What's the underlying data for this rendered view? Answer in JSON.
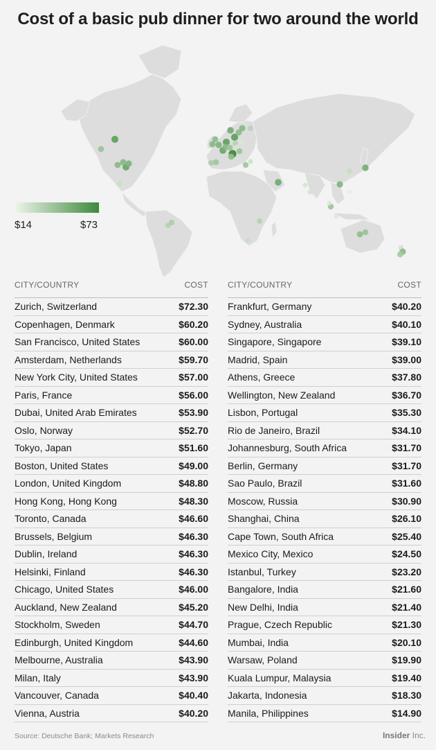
{
  "title": "Cost of a basic pub dinner for two around the world",
  "legend": {
    "min_label": "$14",
    "max_label": "$73",
    "color_low": "#e8f1e4",
    "color_high": "#3c8a3c"
  },
  "table_headers": {
    "city": "CITY/COUNTRY",
    "cost": "COST"
  },
  "left_rows": [
    {
      "city": "Zurich, Switzerland",
      "cost": "$72.30"
    },
    {
      "city": "Copenhagen, Denmark",
      "cost": "$60.20"
    },
    {
      "city": "San Francisco, United States",
      "cost": "$60.00"
    },
    {
      "city": "Amsterdam, Netherlands",
      "cost": "$59.70"
    },
    {
      "city": "New York City, United States",
      "cost": "$57.00"
    },
    {
      "city": "Paris, France",
      "cost": "$56.00"
    },
    {
      "city": "Dubai, United Arab Emirates",
      "cost": "$53.90"
    },
    {
      "city": "Oslo, Norway",
      "cost": "$52.70"
    },
    {
      "city": "Tokyo, Japan",
      "cost": "$51.60"
    },
    {
      "city": "Boston, United States",
      "cost": "$49.00"
    },
    {
      "city": "London, United Kingdom",
      "cost": "$48.80"
    },
    {
      "city": "Hong Kong, Hong Kong",
      "cost": "$48.30"
    },
    {
      "city": "Toronto, Canada",
      "cost": "$46.60"
    },
    {
      "city": "Brussels, Belgium",
      "cost": "$46.30"
    },
    {
      "city": "Dublin, Ireland",
      "cost": "$46.30"
    },
    {
      "city": "Helsinki, Finland",
      "cost": "$46.30"
    },
    {
      "city": "Chicago, United States",
      "cost": "$46.00"
    },
    {
      "city": "Auckland, New Zealand",
      "cost": "$45.20"
    },
    {
      "city": "Stockholm, Sweden",
      "cost": "$44.70"
    },
    {
      "city": "Edinburgh, United Kingdom",
      "cost": "$44.60"
    },
    {
      "city": "Melbourne, Australia",
      "cost": "$43.90"
    },
    {
      "city": "Milan, Italy",
      "cost": "$43.90"
    },
    {
      "city": "Vancouver, Canada",
      "cost": "$40.40"
    },
    {
      "city": "Vienna, Austria",
      "cost": "$40.20"
    }
  ],
  "right_rows": [
    {
      "city": "Frankfurt, Germany",
      "cost": "$40.20"
    },
    {
      "city": "Sydney, Australia",
      "cost": "$40.10"
    },
    {
      "city": "Singapore, Singapore",
      "cost": "$39.10"
    },
    {
      "city": "Madrid, Spain",
      "cost": "$39.00"
    },
    {
      "city": "Athens, Greece",
      "cost": "$37.80"
    },
    {
      "city": "Wellington, New Zealand",
      "cost": "$36.70"
    },
    {
      "city": "Lisbon, Portugal",
      "cost": "$35.30"
    },
    {
      "city": "Rio de Janeiro, Brazil",
      "cost": "$34.10"
    },
    {
      "city": "Johannesburg, South Africa",
      "cost": "$31.70"
    },
    {
      "city": "Berlin, Germany",
      "cost": "$31.70"
    },
    {
      "city": "Sao Paulo, Brazil",
      "cost": "$31.60"
    },
    {
      "city": "Moscow, Russia",
      "cost": "$30.90"
    },
    {
      "city": "Shanghai, China",
      "cost": "$26.10"
    },
    {
      "city": "Cape Town, South Africa",
      "cost": "$25.40"
    },
    {
      "city": "Mexico City, Mexico",
      "cost": "$24.50"
    },
    {
      "city": "Istanbul, Turkey",
      "cost": "$23.20"
    },
    {
      "city": "Bangalore, India",
      "cost": "$21.60"
    },
    {
      "city": "New Delhi, India",
      "cost": "$21.40"
    },
    {
      "city": "Prague, Czech Republic",
      "cost": "$21.30"
    },
    {
      "city": "Mumbai, India",
      "cost": "$20.10"
    },
    {
      "city": "Warsaw, Poland",
      "cost": "$19.90"
    },
    {
      "city": "Kuala Lumpur, Malaysia",
      "cost": "$19.40"
    },
    {
      "city": "Jakarta, Indonesia",
      "cost": "$18.30"
    },
    {
      "city": "Manila, Philippines",
      "cost": "$14.90"
    }
  ],
  "source": "Source: Deutsche Bank; Markets Research",
  "brand": {
    "name": "Insider",
    "suffix": "Inc."
  },
  "chart_data": {
    "type": "map",
    "value_range": [
      14,
      73
    ],
    "points": [
      {
        "city": "Zurich",
        "value": 72.3
      },
      {
        "city": "Copenhagen",
        "value": 60.2
      },
      {
        "city": "San Francisco",
        "value": 60.0
      },
      {
        "city": "Amsterdam",
        "value": 59.7
      },
      {
        "city": "New York City",
        "value": 57.0
      },
      {
        "city": "Paris",
        "value": 56.0
      },
      {
        "city": "Dubai",
        "value": 53.9
      },
      {
        "city": "Oslo",
        "value": 52.7
      },
      {
        "city": "Tokyo",
        "value": 51.6
      },
      {
        "city": "Boston",
        "value": 49.0
      },
      {
        "city": "London",
        "value": 48.8
      },
      {
        "city": "Hong Kong",
        "value": 48.3
      },
      {
        "city": "Toronto",
        "value": 46.6
      },
      {
        "city": "Brussels",
        "value": 46.3
      },
      {
        "city": "Dublin",
        "value": 46.3
      },
      {
        "city": "Helsinki",
        "value": 46.3
      },
      {
        "city": "Chicago",
        "value": 46.0
      },
      {
        "city": "Auckland",
        "value": 45.2
      },
      {
        "city": "Stockholm",
        "value": 44.7
      },
      {
        "city": "Edinburgh",
        "value": 44.6
      },
      {
        "city": "Melbourne",
        "value": 43.9
      },
      {
        "city": "Milan",
        "value": 43.9
      },
      {
        "city": "Vancouver",
        "value": 40.4
      },
      {
        "city": "Vienna",
        "value": 40.2
      },
      {
        "city": "Frankfurt",
        "value": 40.2
      },
      {
        "city": "Sydney",
        "value": 40.1
      },
      {
        "city": "Singapore",
        "value": 39.1
      },
      {
        "city": "Madrid",
        "value": 39.0
      },
      {
        "city": "Athens",
        "value": 37.8
      },
      {
        "city": "Wellington",
        "value": 36.7
      },
      {
        "city": "Lisbon",
        "value": 35.3
      },
      {
        "city": "Rio de Janeiro",
        "value": 34.1
      },
      {
        "city": "Johannesburg",
        "value": 31.7
      },
      {
        "city": "Berlin",
        "value": 31.7
      },
      {
        "city": "Sao Paulo",
        "value": 31.6
      },
      {
        "city": "Moscow",
        "value": 30.9
      },
      {
        "city": "Shanghai",
        "value": 26.1
      },
      {
        "city": "Cape Town",
        "value": 25.4
      },
      {
        "city": "Mexico City",
        "value": 24.5
      },
      {
        "city": "Istanbul",
        "value": 23.2
      },
      {
        "city": "Bangalore",
        "value": 21.6
      },
      {
        "city": "New Delhi",
        "value": 21.4
      },
      {
        "city": "Prague",
        "value": 21.3
      },
      {
        "city": "Mumbai",
        "value": 20.1
      },
      {
        "city": "Warsaw",
        "value": 19.9
      },
      {
        "city": "Kuala Lumpur",
        "value": 19.4
      },
      {
        "city": "Jakarta",
        "value": 18.3
      },
      {
        "city": "Manila",
        "value": 14.9
      }
    ]
  }
}
